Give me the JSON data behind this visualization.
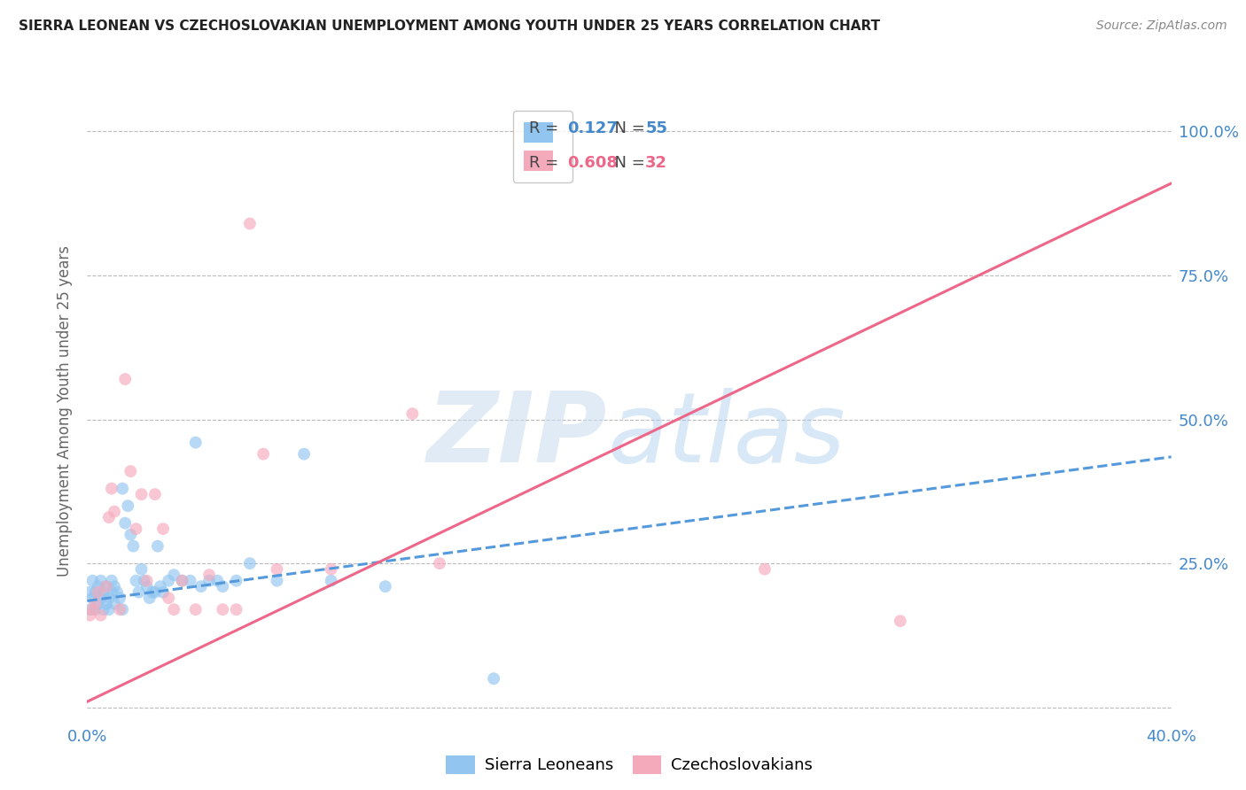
{
  "title": "SIERRA LEONEAN VS CZECHOSLOVAKIAN UNEMPLOYMENT AMONG YOUTH UNDER 25 YEARS CORRELATION CHART",
  "source": "Source: ZipAtlas.com",
  "ylabel": "Unemployment Among Youth under 25 years",
  "xlim": [
    0.0,
    0.4
  ],
  "ylim": [
    -0.02,
    1.05
  ],
  "xticks": [
    0.0,
    0.1,
    0.2,
    0.3,
    0.4
  ],
  "xtick_labels": [
    "0.0%",
    "",
    "",
    "",
    "40.0%"
  ],
  "yticks": [
    0.0,
    0.25,
    0.5,
    0.75,
    1.0
  ],
  "ytick_labels": [
    "",
    "25.0%",
    "50.0%",
    "75.0%",
    "100.0%"
  ],
  "blue_color": "#92C5F0",
  "pink_color": "#F5AABC",
  "blue_line_color": "#5599DD",
  "pink_line_color": "#EE6688",
  "background_color": "#ffffff",
  "grid_color": "#BBBBBB",
  "blue_scatter_x": [
    0.001,
    0.001,
    0.002,
    0.002,
    0.003,
    0.003,
    0.004,
    0.004,
    0.005,
    0.005,
    0.006,
    0.006,
    0.007,
    0.007,
    0.008,
    0.008,
    0.009,
    0.009,
    0.01,
    0.01,
    0.011,
    0.012,
    0.013,
    0.013,
    0.014,
    0.015,
    0.016,
    0.017,
    0.018,
    0.019,
    0.02,
    0.021,
    0.022,
    0.023,
    0.024,
    0.025,
    0.026,
    0.027,
    0.028,
    0.03,
    0.032,
    0.035,
    0.038,
    0.04,
    0.042,
    0.045,
    0.048,
    0.05,
    0.055,
    0.06,
    0.07,
    0.08,
    0.09,
    0.11,
    0.15
  ],
  "blue_scatter_y": [
    0.17,
    0.2,
    0.19,
    0.22,
    0.17,
    0.2,
    0.18,
    0.21,
    0.19,
    0.22,
    0.17,
    0.2,
    0.21,
    0.18,
    0.19,
    0.17,
    0.2,
    0.22,
    0.18,
    0.21,
    0.2,
    0.19,
    0.38,
    0.17,
    0.32,
    0.35,
    0.3,
    0.28,
    0.22,
    0.2,
    0.24,
    0.22,
    0.21,
    0.19,
    0.2,
    0.2,
    0.28,
    0.21,
    0.2,
    0.22,
    0.23,
    0.22,
    0.22,
    0.46,
    0.21,
    0.22,
    0.22,
    0.21,
    0.22,
    0.25,
    0.22,
    0.44,
    0.22,
    0.21,
    0.05
  ],
  "pink_scatter_x": [
    0.001,
    0.002,
    0.003,
    0.004,
    0.005,
    0.007,
    0.008,
    0.009,
    0.01,
    0.012,
    0.014,
    0.016,
    0.018,
    0.02,
    0.022,
    0.025,
    0.028,
    0.03,
    0.032,
    0.035,
    0.04,
    0.045,
    0.05,
    0.055,
    0.06,
    0.065,
    0.07,
    0.09,
    0.12,
    0.13,
    0.25,
    0.3
  ],
  "pink_scatter_y": [
    0.16,
    0.17,
    0.18,
    0.2,
    0.16,
    0.21,
    0.33,
    0.38,
    0.34,
    0.17,
    0.57,
    0.41,
    0.31,
    0.37,
    0.22,
    0.37,
    0.31,
    0.19,
    0.17,
    0.22,
    0.17,
    0.23,
    0.17,
    0.17,
    0.84,
    0.44,
    0.24,
    0.24,
    0.51,
    0.25,
    0.24,
    0.15
  ],
  "blue_line_x": [
    0.0,
    0.4
  ],
  "blue_line_y": [
    0.185,
    0.435
  ],
  "pink_line_x": [
    0.0,
    0.4
  ],
  "pink_line_y": [
    0.01,
    0.91
  ]
}
